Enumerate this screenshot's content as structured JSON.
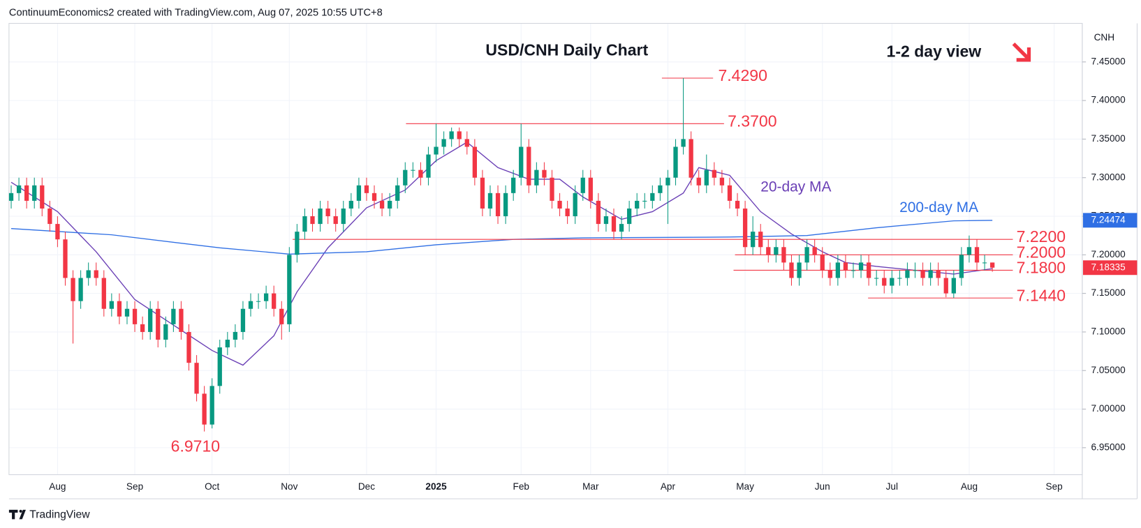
{
  "header": "ContinuumEconomics2 created with TradingView.com, Aug 07, 2025 10:55 UTC+8",
  "footer": "TradingView",
  "chart_data": {
    "type": "candlestick",
    "title": "USD/CNH Daily Chart",
    "subtitle": "1-2 day view",
    "y_axis_label": "CNH",
    "grid": true,
    "up_color": "#089981",
    "down_color": "#f23645",
    "categories": [
      null,
      null,
      null,
      null,
      null,
      null,
      "Aug",
      null,
      null,
      null,
      null,
      null,
      null,
      null,
      null,
      null,
      "Sep",
      null,
      null,
      null,
      null,
      null,
      null,
      null,
      null,
      null,
      "Oct",
      null,
      null,
      null,
      null,
      null,
      null,
      null,
      null,
      null,
      "Nov",
      null,
      null,
      null,
      null,
      null,
      null,
      null,
      null,
      null,
      "Dec",
      null,
      null,
      null,
      null,
      null,
      null,
      null,
      null,
      "2025",
      null,
      null,
      null,
      null,
      null,
      null,
      null,
      null,
      null,
      null,
      "Feb",
      null,
      null,
      null,
      null,
      null,
      null,
      null,
      null,
      "Mar",
      null,
      null,
      null,
      null,
      null,
      null,
      null,
      null,
      null,
      "Apr",
      null,
      null,
      null,
      null,
      null,
      null,
      null,
      null,
      null,
      "May",
      null,
      null,
      null,
      null,
      null,
      null,
      null,
      null,
      null,
      "Jun",
      null,
      null,
      null,
      null,
      null,
      null,
      null,
      null,
      "Jul",
      null,
      null,
      null,
      null,
      null,
      null,
      null,
      null,
      null,
      "Aug",
      null,
      null,
      null,
      null,
      null,
      null,
      null,
      null,
      null,
      null,
      "Sep"
    ],
    "open": [
      7.27,
      7.28,
      7.29,
      7.27,
      7.29,
      7.26,
      7.24,
      7.22,
      7.17,
      7.14,
      7.17,
      7.18,
      7.17,
      7.13,
      7.14,
      7.12,
      7.13,
      7.11,
      7.1,
      7.13,
      7.09,
      7.11,
      7.13,
      7.1,
      7.06,
      7.02,
      6.98,
      7.03,
      7.08,
      7.09,
      7.1,
      7.13,
      7.14,
      7.14,
      7.15,
      7.13,
      7.11,
      7.2,
      7.23,
      7.25,
      7.24,
      7.26,
      7.25,
      7.24,
      7.26,
      7.27,
      7.29,
      7.28,
      7.27,
      7.26,
      7.27,
      7.29,
      7.31,
      7.31,
      7.3,
      7.33,
      7.34,
      7.35,
      7.36,
      7.35,
      7.34,
      7.3,
      7.26,
      7.28,
      7.25,
      7.28,
      7.3,
      7.34,
      7.29,
      7.31,
      7.3,
      7.27,
      7.26,
      7.25,
      7.28,
      7.3,
      7.27,
      7.24,
      7.25,
      7.23,
      7.24,
      7.26,
      7.27,
      7.27,
      7.28,
      7.29,
      7.3,
      7.34,
      7.35,
      7.3,
      7.29,
      7.31,
      7.3,
      7.29,
      7.27,
      7.26,
      7.21,
      7.23,
      7.21,
      7.2,
      7.21,
      7.19,
      7.17,
      7.19,
      7.21,
      7.2,
      7.18,
      7.17,
      7.19,
      7.18,
      7.18,
      7.19,
      7.17,
      7.17,
      7.16,
      7.17,
      7.17,
      7.18,
      7.18,
      7.17,
      7.18,
      7.17,
      7.15,
      7.17,
      7.2,
      7.21,
      7.19,
      7.19,
      null,
      null,
      null,
      null,
      null,
      null,
      null,
      null
    ],
    "high": [
      7.29,
      7.3,
      7.3,
      7.3,
      7.3,
      7.27,
      7.25,
      7.23,
      7.18,
      7.18,
      7.19,
      7.19,
      7.18,
      7.15,
      7.15,
      7.14,
      7.14,
      7.12,
      7.14,
      7.14,
      7.12,
      7.14,
      7.14,
      7.11,
      7.07,
      7.03,
      7.04,
      7.09,
      7.1,
      7.11,
      7.14,
      7.15,
      7.15,
      7.16,
      7.16,
      7.14,
      7.21,
      7.24,
      7.26,
      7.26,
      7.27,
      7.27,
      7.26,
      7.27,
      7.28,
      7.3,
      7.3,
      7.29,
      7.28,
      7.28,
      7.3,
      7.32,
      7.32,
      7.32,
      7.34,
      7.37,
      7.36,
      7.365,
      7.365,
      7.36,
      7.35,
      7.31,
      7.29,
      7.29,
      7.29,
      7.31,
      7.37,
      7.35,
      7.32,
      7.32,
      7.31,
      7.28,
      7.27,
      7.29,
      7.31,
      7.31,
      7.28,
      7.26,
      7.26,
      7.25,
      7.27,
      7.28,
      7.28,
      7.29,
      7.3,
      7.31,
      7.35,
      7.429,
      7.36,
      7.31,
      7.33,
      7.32,
      7.31,
      7.3,
      7.28,
      7.27,
      7.25,
      7.24,
      7.22,
      7.22,
      7.22,
      7.2,
      7.2,
      7.22,
      7.22,
      7.21,
      7.19,
      7.2,
      7.2,
      7.19,
      7.2,
      7.2,
      7.18,
      7.18,
      7.18,
      7.18,
      7.19,
      7.19,
      7.19,
      7.19,
      7.19,
      7.18,
      7.18,
      7.21,
      7.225,
      7.22,
      7.2,
      7.19,
      null,
      null,
      null,
      null,
      null,
      null,
      null,
      null
    ],
    "low": [
      7.26,
      7.27,
      7.26,
      7.26,
      7.25,
      7.23,
      7.21,
      7.16,
      7.085,
      7.13,
      7.16,
      7.16,
      7.12,
      7.12,
      7.11,
      7.11,
      7.1,
      7.09,
      7.09,
      7.08,
      7.08,
      7.1,
      7.09,
      7.05,
      7.01,
      6.971,
      6.975,
      7.02,
      7.07,
      7.08,
      7.09,
      7.12,
      7.13,
      7.13,
      7.12,
      7.09,
      7.1,
      7.19,
      7.22,
      7.23,
      7.23,
      7.24,
      7.23,
      7.23,
      7.25,
      7.26,
      7.27,
      7.26,
      7.25,
      7.25,
      7.26,
      7.28,
      7.3,
      7.29,
      7.29,
      7.32,
      7.33,
      7.34,
      7.34,
      7.33,
      7.29,
      7.25,
      7.25,
      7.24,
      7.24,
      7.27,
      7.29,
      7.28,
      7.28,
      7.29,
      7.26,
      7.25,
      7.24,
      7.24,
      7.27,
      7.26,
      7.23,
      7.23,
      7.22,
      7.22,
      7.23,
      7.25,
      7.26,
      7.26,
      7.27,
      7.24,
      7.29,
      7.33,
      7.29,
      7.28,
      7.28,
      7.29,
      7.28,
      7.26,
      7.25,
      7.2,
      7.2,
      7.2,
      7.19,
      7.19,
      7.18,
      7.16,
      7.16,
      7.18,
      7.19,
      7.17,
      7.16,
      7.16,
      7.17,
      7.17,
      7.17,
      7.16,
      7.16,
      7.15,
      7.15,
      7.16,
      7.16,
      7.17,
      7.16,
      7.16,
      7.16,
      7.145,
      7.144,
      7.16,
      7.19,
      7.18,
      7.18,
      7.178,
      null,
      null,
      null,
      null,
      null,
      null,
      null,
      null
    ],
    "close": [
      7.28,
      7.29,
      7.27,
      7.29,
      7.26,
      7.24,
      7.22,
      7.17,
      7.14,
      7.17,
      7.18,
      7.17,
      7.13,
      7.14,
      7.12,
      7.13,
      7.11,
      7.1,
      7.13,
      7.09,
      7.11,
      7.13,
      7.1,
      7.06,
      7.02,
      6.98,
      7.03,
      7.08,
      7.09,
      7.1,
      7.13,
      7.14,
      7.14,
      7.15,
      7.13,
      7.11,
      7.2,
      7.23,
      7.25,
      7.24,
      7.26,
      7.25,
      7.24,
      7.26,
      7.27,
      7.29,
      7.28,
      7.27,
      7.26,
      7.27,
      7.29,
      7.31,
      7.31,
      7.3,
      7.33,
      7.34,
      7.35,
      7.36,
      7.35,
      7.34,
      7.3,
      7.26,
      7.28,
      7.25,
      7.28,
      7.3,
      7.34,
      7.29,
      7.31,
      7.3,
      7.27,
      7.26,
      7.25,
      7.28,
      7.3,
      7.27,
      7.24,
      7.25,
      7.23,
      7.24,
      7.26,
      7.27,
      7.27,
      7.28,
      7.29,
      7.3,
      7.34,
      7.35,
      7.3,
      7.29,
      7.31,
      7.3,
      7.29,
      7.27,
      7.26,
      7.21,
      7.23,
      7.21,
      7.2,
      7.21,
      7.19,
      7.17,
      7.19,
      7.21,
      7.2,
      7.18,
      7.17,
      7.19,
      7.18,
      7.18,
      7.19,
      7.17,
      7.17,
      7.16,
      7.17,
      7.17,
      7.18,
      7.18,
      7.17,
      7.18,
      7.17,
      7.15,
      7.17,
      7.2,
      7.21,
      7.19,
      7.19,
      7.18335,
      null,
      null,
      null,
      null,
      null,
      null,
      null,
      null
    ],
    "moving_averages": [
      {
        "name": "20-day MA",
        "color": "#6a3fb5",
        "x": [
          0,
          6,
          11,
          16,
          21,
          26,
          30,
          34,
          37,
          41,
          46,
          51,
          55,
          59,
          63,
          67,
          71,
          74,
          79,
          83,
          87,
          89,
          93,
          97,
          101,
          105,
          108,
          112,
          117,
          122,
          127
        ],
        "values": [
          7.294,
          7.256,
          7.204,
          7.142,
          7.109,
          7.076,
          7.057,
          7.095,
          7.152,
          7.209,
          7.261,
          7.284,
          7.322,
          7.346,
          7.313,
          7.298,
          7.298,
          7.275,
          7.246,
          7.256,
          7.28,
          7.313,
          7.303,
          7.256,
          7.227,
          7.204,
          7.19,
          7.185,
          7.18,
          7.175,
          7.182
        ]
      },
      {
        "name": "200-day MA",
        "color": "#2f6fe4",
        "x": [
          0,
          13,
          27,
          36,
          46,
          55,
          65,
          74,
          93,
          103,
          112,
          122,
          127
        ],
        "values": [
          7.234,
          7.226,
          7.209,
          7.201,
          7.204,
          7.213,
          7.22,
          7.222,
          7.223,
          7.225,
          7.235,
          7.244,
          7.24474
        ]
      }
    ],
    "levels": [
      {
        "value": 7.429,
        "label": "7.4290"
      },
      {
        "value": 7.37,
        "label": "7.3700"
      },
      {
        "value": 7.22,
        "label": "7.2200"
      },
      {
        "value": 7.2,
        "label": "7.2000"
      },
      {
        "value": 7.18,
        "label": "7.1800"
      },
      {
        "value": 7.144,
        "label": "7.1440"
      }
    ],
    "low_annotation": {
      "value": 6.971,
      "label": "6.9710"
    },
    "ylim": [
      6.915,
      7.5
    ],
    "yticks": [
      {
        "value": 6.95,
        "label": "6.95000"
      },
      {
        "value": 7.0,
        "label": "7.00000"
      },
      {
        "value": 7.05,
        "label": "7.05000"
      },
      {
        "value": 7.1,
        "label": "7.10000"
      },
      {
        "value": 7.15,
        "label": "7.15000"
      },
      {
        "value": 7.2,
        "label": "7.20000"
      },
      {
        "value": 7.25,
        "label": "7.25000"
      },
      {
        "value": 7.3,
        "label": "7.30000"
      },
      {
        "value": 7.35,
        "label": "7.35000"
      },
      {
        "value": 7.4,
        "label": "7.40000"
      },
      {
        "value": 7.45,
        "label": "7.45000"
      }
    ]
  }
}
